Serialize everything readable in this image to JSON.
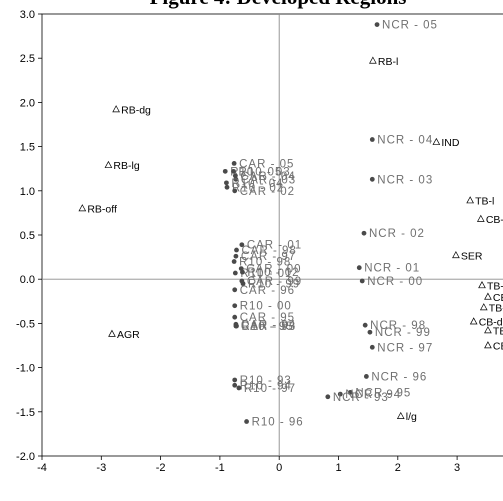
{
  "chart_data": {
    "type": "scatter",
    "title": "Figure 4: Developed Regions",
    "xlabel": "",
    "ylabel": "",
    "xlim": [
      -4,
      4
    ],
    "ylim": [
      -2.0,
      3.0
    ],
    "x_ticks": [
      "-4",
      "-3",
      "-2",
      "-1",
      "0",
      "1",
      "2",
      "3"
    ],
    "y_ticks": [
      "3.0",
      "2.5",
      "2.0",
      "1.5",
      "1.0",
      "0.5",
      "0.0",
      "-0.5",
      "-1.0",
      "-1.5",
      "-2.0"
    ],
    "grid": false,
    "reference_lines": [
      0,
      0
    ],
    "series": [
      {
        "marker": "dot",
        "points": [
          {
            "label": "NCR - 05",
            "x": 1.65,
            "y": 2.88
          },
          {
            "label": "NCR - 04",
            "x": 1.57,
            "y": 1.58
          },
          {
            "label": "NCR - 03",
            "x": 1.57,
            "y": 1.13
          },
          {
            "label": "NCR - 02",
            "x": 1.43,
            "y": 0.52
          },
          {
            "label": "NCR - 01",
            "x": 1.35,
            "y": 0.13
          },
          {
            "label": "NCR - 00",
            "x": 1.4,
            "y": -0.02
          },
          {
            "label": "NCR - 98",
            "x": 1.45,
            "y": -0.52
          },
          {
            "label": "NCR - 99",
            "x": 1.53,
            "y": -0.6
          },
          {
            "label": "NCR - 97",
            "x": 1.57,
            "y": -0.77
          },
          {
            "label": "NCR - 96",
            "x": 1.47,
            "y": -1.1
          },
          {
            "label": "NCR - 95",
            "x": 1.2,
            "y": -1.28
          },
          {
            "label": "NCR - 94",
            "x": 1.03,
            "y": -1.3
          },
          {
            "label": "NCR - 93",
            "x": 0.82,
            "y": -1.33
          },
          {
            "label": "CAR - 05",
            "x": -0.76,
            "y": 1.31
          },
          {
            "label": "R10 - 05",
            "x": -0.91,
            "y": 1.22
          },
          {
            "label": "R10 - 03",
            "x": -0.77,
            "y": 1.22
          },
          {
            "label": "CAR - 04",
            "x": -0.74,
            "y": 1.17
          },
          {
            "label": "CAR - 03",
            "x": -0.73,
            "y": 1.13
          },
          {
            "label": "R10 - 04",
            "x": -0.89,
            "y": 1.09
          },
          {
            "label": "R10 - 02",
            "x": -0.88,
            "y": 1.04
          },
          {
            "label": "CAR - 02",
            "x": -0.75,
            "y": 1.0
          },
          {
            "label": "CAR - 01",
            "x": -0.63,
            "y": 0.39
          },
          {
            "label": "CAR - 98",
            "x": -0.72,
            "y": 0.33
          },
          {
            "label": "CAR - 97",
            "x": -0.73,
            "y": 0.26
          },
          {
            "label": "R10 - 98",
            "x": -0.76,
            "y": 0.2
          },
          {
            "label": "R10 - 01",
            "x": -0.74,
            "y": 0.07
          },
          {
            "label": "R10 - 02",
            "x": -0.62,
            "y": 0.08
          },
          {
            "label": "CAR - 00",
            "x": -0.64,
            "y": 0.12
          },
          {
            "label": "R10 - 99",
            "x": -0.61,
            "y": -0.05
          },
          {
            "label": "CAR - 99",
            "x": -0.63,
            "y": -0.02
          },
          {
            "label": "CAR - 96",
            "x": -0.75,
            "y": -0.12
          },
          {
            "label": "R10 - 00",
            "x": -0.75,
            "y": -0.3
          },
          {
            "label": "CAR - 95",
            "x": -0.75,
            "y": -0.43
          },
          {
            "label": "CAR - 94",
            "x": -0.73,
            "y": -0.51
          },
          {
            "label": "CAR - 93",
            "x": -0.73,
            "y": -0.53
          },
          {
            "label": "R10 - 95",
            "x": -0.72,
            "y": -0.53
          },
          {
            "label": "R10 - 93",
            "x": -0.75,
            "y": -1.14
          },
          {
            "label": "R10 - 94",
            "x": -0.75,
            "y": -1.2
          },
          {
            "label": "R10 - 97",
            "x": -0.68,
            "y": -1.23
          },
          {
            "label": "R10 - 96",
            "x": -0.55,
            "y": -1.61
          }
        ]
      },
      {
        "marker": "triangle",
        "points": [
          {
            "label": "RB-l",
            "x": 1.58,
            "y": 2.47
          },
          {
            "label": "RB-dg",
            "x": -2.75,
            "y": 1.92
          },
          {
            "label": "RB-lg",
            "x": -2.88,
            "y": 1.29
          },
          {
            "label": "RB-off",
            "x": -3.32,
            "y": 0.8
          },
          {
            "label": "AGR",
            "x": -2.82,
            "y": -0.62
          },
          {
            "label": "IND",
            "x": 2.65,
            "y": 1.55
          },
          {
            "label": "SER",
            "x": 2.98,
            "y": 0.27
          },
          {
            "label": "TB-l",
            "x": 3.22,
            "y": 0.89
          },
          {
            "label": "CB-l",
            "x": 3.4,
            "y": 0.68
          },
          {
            "label": "TB-off",
            "x": 3.42,
            "y": -0.07
          },
          {
            "label": "CB-off",
            "x": 3.52,
            "y": -0.2
          },
          {
            "label": "TB-dg",
            "x": 3.45,
            "y": -0.32
          },
          {
            "label": "CB-dg",
            "x": 3.28,
            "y": -0.48
          },
          {
            "label": "TB-lg",
            "x": 3.52,
            "y": -0.58
          },
          {
            "label": "CB-lg",
            "x": 3.52,
            "y": -0.75
          },
          {
            "label": "l/g",
            "x": 2.05,
            "y": -1.55
          }
        ]
      }
    ]
  }
}
